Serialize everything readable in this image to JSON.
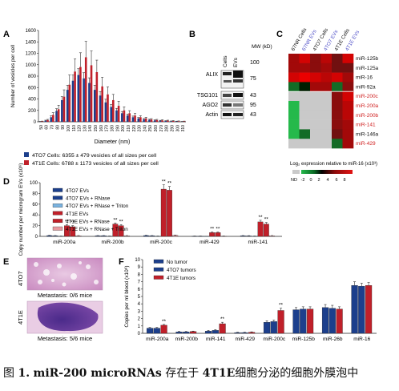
{
  "caption": {
    "fig": "图",
    "num": "1.",
    "mir": "miR-200 microRNAs",
    "t1": "存在于",
    "cell": "4T1E",
    "t2": "细胞分泌的细胞外膜泡中"
  },
  "panels": {
    "A": {
      "label": "A"
    },
    "B": {
      "label": "B",
      "cols": [
        "Cells",
        "EVs"
      ],
      "mw_header": "MW (kD)",
      "rows": [
        {
          "name": "ALIX",
          "mw": "100"
        },
        {
          "name": "",
          "mw": "75"
        },
        {
          "name": "TSG101",
          "mw": "43"
        },
        {
          "name": "AGO2",
          "mw": "95"
        },
        {
          "name": "Actin",
          "mw": "43"
        }
      ]
    },
    "C": {
      "label": "C",
      "colorbar_title": "Log₂ expression relative to miR-16 (x10³)",
      "colorbar_ticks": [
        "ND",
        "-2",
        "0",
        "2",
        "4",
        "6",
        "8"
      ]
    },
    "D": {
      "label": "D"
    },
    "E": {
      "label": "E",
      "items": [
        {
          "name": "4TO7",
          "caption": "Metastasis: 0/6 mice"
        },
        {
          "name": "4T1E",
          "caption": "Metastasis: 5/6 mice"
        }
      ]
    },
    "F": {
      "label": "F"
    }
  },
  "colors": {
    "blue": "#1c3f8c",
    "red": "#c0202a",
    "light_blue": "#7ab3e0",
    "light_red": "#e89aa0",
    "hm_red": "#d11a1a",
    "hm_green": "#25b94b",
    "nd_gray": "#c9c9c9",
    "label_blue": "#5050c8",
    "label_red": "#d02020"
  },
  "chart_data": [
    {
      "type": "bar",
      "panel": "A",
      "xlabel": "Diameter (nm)",
      "ylabel": "Number of vesicles per cell",
      "ylim": [
        0,
        1600
      ],
      "yticks": [
        0,
        200,
        400,
        600,
        800,
        1000,
        1200,
        1400,
        1600
      ],
      "categories": [
        "50",
        "60",
        "70",
        "80",
        "90",
        "100",
        "110",
        "120",
        "130",
        "140",
        "150",
        "160",
        "170",
        "180",
        "190",
        "200",
        "210",
        "220",
        "230",
        "240",
        "250",
        "260",
        "270",
        "280",
        "290",
        "300",
        "310"
      ],
      "series": [
        {
          "name": "4TO7 Cells: 6355 ± 479 vesicles of all sizes per cell",
          "color": "blue",
          "values": [
            5,
            20,
            80,
            190,
            380,
            560,
            720,
            820,
            760,
            680,
            560,
            460,
            340,
            260,
            200,
            150,
            110,
            80,
            60,
            45,
            35,
            25,
            20,
            15,
            10,
            8,
            5
          ],
          "errors": [
            2,
            8,
            25,
            40,
            60,
            80,
            100,
            110,
            100,
            90,
            80,
            70,
            55,
            45,
            35,
            30,
            25,
            20,
            15,
            12,
            10,
            8,
            6,
            5,
            4,
            3,
            2
          ]
        },
        {
          "name": "4T1E Cells: 6788 ± 1173 vesicles of all sizes per cell",
          "color": "red",
          "values": [
            8,
            30,
            120,
            220,
            440,
            650,
            880,
            960,
            1130,
            990,
            870,
            620,
            480,
            380,
            280,
            200,
            150,
            110,
            80,
            60,
            40,
            30,
            25,
            20,
            15,
            10,
            8
          ],
          "errors": [
            4,
            12,
            40,
            70,
            120,
            170,
            220,
            250,
            280,
            250,
            210,
            160,
            130,
            100,
            80,
            60,
            45,
            35,
            25,
            20,
            15,
            12,
            10,
            8,
            6,
            5,
            4
          ]
        }
      ],
      "legend_position": "bottom"
    },
    {
      "type": "heatmap",
      "panel": "C",
      "columns": [
        "67NR Cells",
        "67NR EVs",
        "4TO7 Cells",
        "4TO7 EVs",
        "4T1E Cells",
        "4T1E EVs"
      ],
      "rows": [
        "miR-125b",
        "miR-125a",
        "miR-16",
        "miR-92a",
        "miR-200c",
        "miR-200a",
        "miR-200b",
        "miR-141",
        "miR-146a",
        "miR-429"
      ],
      "nd_marker": "ND",
      "values": [
        [
          5,
          7,
          4,
          6,
          3,
          7
        ],
        [
          5,
          5,
          4,
          5,
          3,
          3
        ],
        [
          7,
          8,
          7,
          6,
          7,
          5
        ],
        [
          -1,
          0,
          5,
          5,
          -1,
          4
        ],
        [
          "ND",
          "ND",
          "ND",
          "ND",
          4,
          7
        ],
        [
          -2,
          "ND",
          "ND",
          "ND",
          4,
          6
        ],
        [
          -2,
          "ND",
          "ND",
          "ND",
          4,
          6
        ],
        [
          -2,
          "ND",
          "ND",
          "ND",
          4,
          5
        ],
        [
          -2,
          -1,
          "ND",
          "ND",
          3,
          5
        ],
        [
          "ND",
          "ND",
          "ND",
          "ND",
          -1,
          5
        ]
      ]
    },
    {
      "type": "bar",
      "panel": "D",
      "ylabel": "Copy number per microgram EVs (x10⁶)",
      "ylim": [
        0,
        100
      ],
      "yticks": [
        0,
        20,
        40,
        60,
        80,
        100
      ],
      "categories": [
        "miR-200a",
        "miR-200b",
        "miR-200c",
        "miR-429",
        "miR-141"
      ],
      "series": [
        {
          "name": "4TO7 EVs",
          "color": "blue",
          "values": [
            1.5,
            1.0,
            1.5,
            0.5,
            1.0
          ],
          "errors": [
            0.5,
            0.5,
            0.5,
            0.2,
            0.5
          ]
        },
        {
          "name": "4TO7 EVs + RNase",
          "color": "blue",
          "values": [
            1.0,
            1.0,
            1.0,
            0.5,
            0.8
          ],
          "errors": [
            0.5,
            0.5,
            0.5,
            0.2,
            0.5
          ]
        },
        {
          "name": "4TO7 EVs + RNase + Triton",
          "color": "light_blue",
          "values": [
            0.5,
            0.5,
            0.5,
            0.2,
            0.5
          ],
          "errors": [
            0.2,
            0.2,
            0.2,
            0.1,
            0.2
          ]
        },
        {
          "name": "4T1E EVs",
          "color": "red",
          "values": [
            20,
            23,
            88,
            7,
            27
          ],
          "errors": [
            2,
            2,
            8,
            1,
            3
          ]
        },
        {
          "name": "4T1E EVs + RNase",
          "color": "red",
          "values": [
            18,
            20,
            86,
            7,
            23
          ],
          "errors": [
            2,
            2,
            7,
            1,
            3
          ]
        },
        {
          "name": "4T1E EVs + RNase + Triton",
          "color": "light_red",
          "values": [
            1,
            1,
            2,
            0.5,
            1
          ],
          "errors": [
            0.5,
            0.5,
            0.5,
            0.2,
            0.5
          ]
        }
      ],
      "annotations": [
        {
          "category": "miR-200a",
          "series": [
            3,
            4
          ],
          "text": "**"
        },
        {
          "category": "miR-200b",
          "series": [
            3,
            4
          ],
          "text": "**"
        },
        {
          "category": "miR-200c",
          "series": [
            3,
            4
          ],
          "text": "**"
        },
        {
          "category": "miR-429",
          "series": [
            3,
            4
          ],
          "text": "**"
        },
        {
          "category": "miR-141",
          "series": [
            3,
            4
          ],
          "text": "**"
        }
      ],
      "legend_position": "top-left"
    },
    {
      "type": "bar",
      "panel": "F",
      "ylabel": "Copies per ml blood (x10⁶)",
      "ylim": [
        0,
        10
      ],
      "yticks": [
        0,
        1,
        2,
        3,
        4,
        5,
        6,
        7,
        8,
        9,
        10
      ],
      "categories": [
        "miR-200a",
        "miR-200b",
        "miR-141",
        "miR-429",
        "miR-200c",
        "miR-125b",
        "miR-26b",
        "miR-16"
      ],
      "series": [
        {
          "name": "No tumor",
          "color": "blue",
          "values": [
            0.7,
            0.2,
            0.3,
            0.1,
            1.5,
            3.2,
            3.5,
            6.5
          ],
          "errors": [
            0.1,
            0.05,
            0.1,
            0.05,
            0.2,
            0.3,
            0.4,
            0.5
          ]
        },
        {
          "name": "4TO7 tumors",
          "color": "blue",
          "values": [
            0.7,
            0.2,
            0.4,
            0.1,
            1.6,
            3.3,
            3.4,
            6.4
          ],
          "errors": [
            0.1,
            0.05,
            0.1,
            0.05,
            0.2,
            0.3,
            0.4,
            0.4
          ]
        },
        {
          "name": "4T1E tumors",
          "color": "red",
          "values": [
            1.1,
            0.25,
            1.3,
            0.15,
            3.1,
            3.3,
            3.3,
            6.5
          ],
          "errors": [
            0.1,
            0.05,
            0.2,
            0.05,
            0.3,
            0.3,
            0.3,
            0.4
          ]
        }
      ],
      "annotations": [
        {
          "category": "miR-200a",
          "series": [
            2
          ],
          "text": "**"
        },
        {
          "category": "miR-141",
          "series": [
            2
          ],
          "text": "**"
        },
        {
          "category": "miR-200c",
          "series": [
            2
          ],
          "text": "**"
        }
      ],
      "legend_position": "top-left"
    }
  ]
}
